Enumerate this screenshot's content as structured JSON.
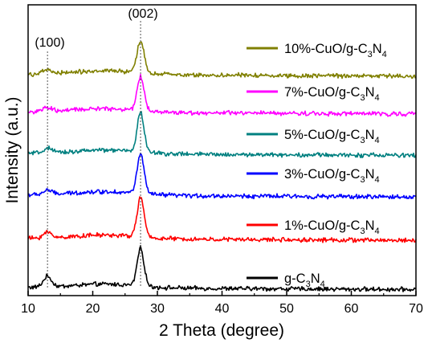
{
  "chart_data": {
    "type": "line",
    "xlabel": "2 Theta (degree)",
    "ylabel": "Intensity (a.u.)",
    "xlim": [
      10,
      70
    ],
    "x_ticks": [
      "10",
      "20",
      "30",
      "40",
      "50",
      "60",
      "70"
    ],
    "y_ticks_labeled": false,
    "grid": false,
    "legend": "inline labels at right of each curve",
    "annotations": [
      {
        "text": "(100)",
        "x": 13.0
      },
      {
        "text": "(002)",
        "x": 27.4
      }
    ],
    "series": [
      {
        "name": "g-C3N4",
        "label_main": "g-C",
        "label_sub1": "3",
        "label_mid": "N",
        "label_sub2": "4",
        "color": "#000000",
        "baseline": 0.0,
        "peak002": 1.0,
        "hump100": 0.28
      },
      {
        "name": "1%-CuO/g-C3N4",
        "label_main": "1%-CuO/g-C",
        "label_sub1": "3",
        "label_mid": "N",
        "label_sub2": "4",
        "color": "#ff0000",
        "baseline": 1.3,
        "peak002": 1.05,
        "hump100": 0.15
      },
      {
        "name": "3%-CuO/g-C3N4",
        "label_main": "3%-CuO/g-C",
        "label_sub1": "3",
        "label_mid": "N",
        "label_sub2": "4",
        "color": "#0000ff",
        "baseline": 2.45,
        "peak002": 1.05,
        "hump100": 0.12
      },
      {
        "name": "5%-CuO/g-C3N4",
        "label_main": "5%-CuO/g-C",
        "label_sub1": "3",
        "label_mid": "N",
        "label_sub2": "4",
        "color": "#008080",
        "baseline": 3.55,
        "peak002": 1.05,
        "hump100": 0.12
      },
      {
        "name": "7%-CuO/g-C3N4",
        "label_main": "7%-CuO/g-C",
        "label_sub1": "3",
        "label_mid": "N",
        "label_sub2": "4",
        "color": "#ff00ff",
        "baseline": 4.65,
        "peak002": 0.9,
        "hump100": 0.1
      },
      {
        "name": "10%-CuO/g-C3N4",
        "label_main": "10%-CuO/g-C",
        "label_sub1": "3",
        "label_mid": "N",
        "label_sub2": "4",
        "color": "#808000",
        "baseline": 5.65,
        "peak002": 0.85,
        "hump100": 0.1
      }
    ]
  }
}
